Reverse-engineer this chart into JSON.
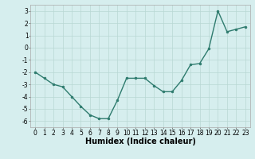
{
  "x": [
    0,
    1,
    2,
    3,
    4,
    5,
    6,
    7,
    8,
    9,
    10,
    11,
    12,
    13,
    14,
    15,
    16,
    17,
    18,
    19,
    20,
    21,
    22,
    23
  ],
  "y": [
    -2.0,
    -2.5,
    -3.0,
    -3.2,
    -4.0,
    -4.8,
    -5.5,
    -5.8,
    -5.8,
    -4.3,
    -2.5,
    -2.5,
    -2.5,
    -3.1,
    -3.6,
    -3.6,
    -2.7,
    -1.4,
    -1.3,
    -0.1,
    3.0,
    1.3,
    1.5,
    1.7
  ],
  "line_color": "#2e7b6e",
  "marker": "o",
  "markersize": 2,
  "linewidth": 1.0,
  "xlabel": "Humidex (Indice chaleur)",
  "xlim": [
    -0.5,
    23.5
  ],
  "ylim": [
    -6.5,
    3.5
  ],
  "yticks": [
    -6,
    -5,
    -4,
    -3,
    -2,
    -1,
    0,
    1,
    2,
    3
  ],
  "xticks": [
    0,
    1,
    2,
    3,
    4,
    5,
    6,
    7,
    8,
    9,
    10,
    11,
    12,
    13,
    14,
    15,
    16,
    17,
    18,
    19,
    20,
    21,
    22,
    23
  ],
  "bg_color": "#d6eeee",
  "grid_color": "#b8d8d4",
  "tick_fontsize": 5.5,
  "xlabel_fontsize": 7
}
